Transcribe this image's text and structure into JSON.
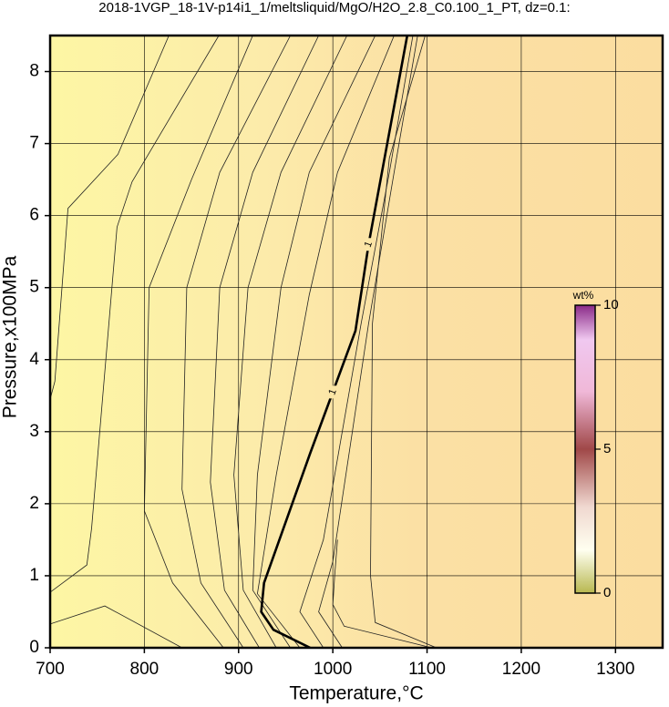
{
  "chart_data": {
    "type": "contour",
    "title": "2018-1VGP_18-1V-p14i1_1/meltsliquid/MgO/H2O_2.8_C0.100_1_PT, dz=0.1:",
    "x_label": "Temperature,°C",
    "y_label": "Pressure,x100MPa",
    "xlim": [
      700,
      1350
    ],
    "ylim": [
      0,
      8.5
    ],
    "xticks": [
      700,
      800,
      900,
      1000,
      1100,
      1200,
      1300
    ],
    "yticks": [
      0,
      1,
      2,
      3,
      4,
      5,
      6,
      7,
      8
    ],
    "grid": true,
    "line_color": "#222222",
    "contours": [
      {
        "x": [
          700,
          705,
          719,
          772,
          826
        ],
        "y": [
          3.45,
          3.7,
          6.1,
          6.85,
          8.5
        ]
      },
      {
        "x": [
          700,
          739,
          744,
          771,
          787,
          879
        ],
        "y": [
          0.77,
          1.15,
          1.66,
          5.84,
          6.47,
          8.5
        ]
      },
      {
        "x": [
          700,
          758,
          840
        ],
        "y": [
          0.33,
          0.58,
          0
        ]
      },
      {
        "x": [
          884,
          830,
          800,
          805,
          850,
          915
        ],
        "y": [
          0,
          0.9,
          1.9,
          5.0,
          6.5,
          8.5
        ]
      },
      {
        "x": [
          905,
          860,
          840,
          845,
          880,
          955
        ],
        "y": [
          0,
          0.9,
          2.2,
          5.0,
          6.6,
          8.5
        ]
      },
      {
        "x": [
          922,
          885,
          870,
          880,
          915,
          985
        ],
        "y": [
          0,
          0.8,
          2.3,
          5.0,
          6.6,
          8.5
        ]
      },
      {
        "x": [
          940,
          905,
          895,
          910,
          945,
          1015
        ],
        "y": [
          0,
          0.8,
          2.4,
          5.0,
          6.6,
          8.5
        ]
      },
      {
        "x": [
          955,
          915,
          920,
          945,
          975,
          1045
        ],
        "y": [
          0,
          0.8,
          2.4,
          5.0,
          6.6,
          8.5
        ]
      },
      {
        "x": [
          965,
          920,
          940,
          975,
          1005,
          1065
        ],
        "y": [
          0,
          0.75,
          2.4,
          4.9,
          6.6,
          8.5
        ]
      },
      {
        "x": [
          990,
          965,
          990,
          1030,
          1060,
          1085
        ],
        "y": [
          0,
          0.5,
          1.5,
          4.5,
          6.6,
          8.5
        ]
      },
      {
        "x": [
          1010,
          985,
          1000,
          1038,
          1065,
          1090
        ],
        "y": [
          0,
          0.5,
          1.2,
          4.5,
          6.6,
          8.5
        ]
      },
      {
        "x": [
          1005,
          1002,
          1000,
          1012,
          1105
        ],
        "y": [
          1.5,
          1.0,
          0.6,
          0.3,
          0
        ]
      },
      {
        "x": [
          1110,
          1045,
          1040,
          1042,
          1060,
          1098
        ],
        "y": [
          0,
          0.35,
          1.0,
          4.5,
          6.8,
          8.5
        ]
      },
      {
        "x": [
          1079,
          1038,
          1024,
          976,
          927,
          924,
          937,
          976
        ],
        "y": [
          8.5,
          5.6,
          4.4,
          2.7,
          0.9,
          0.5,
          0.25,
          0
        ],
        "level": 1,
        "bold": true
      }
    ],
    "colorbar": {
      "label": "wt%",
      "lim": [
        0,
        10
      ],
      "ticks": [
        0,
        5,
        10
      ]
    }
  }
}
